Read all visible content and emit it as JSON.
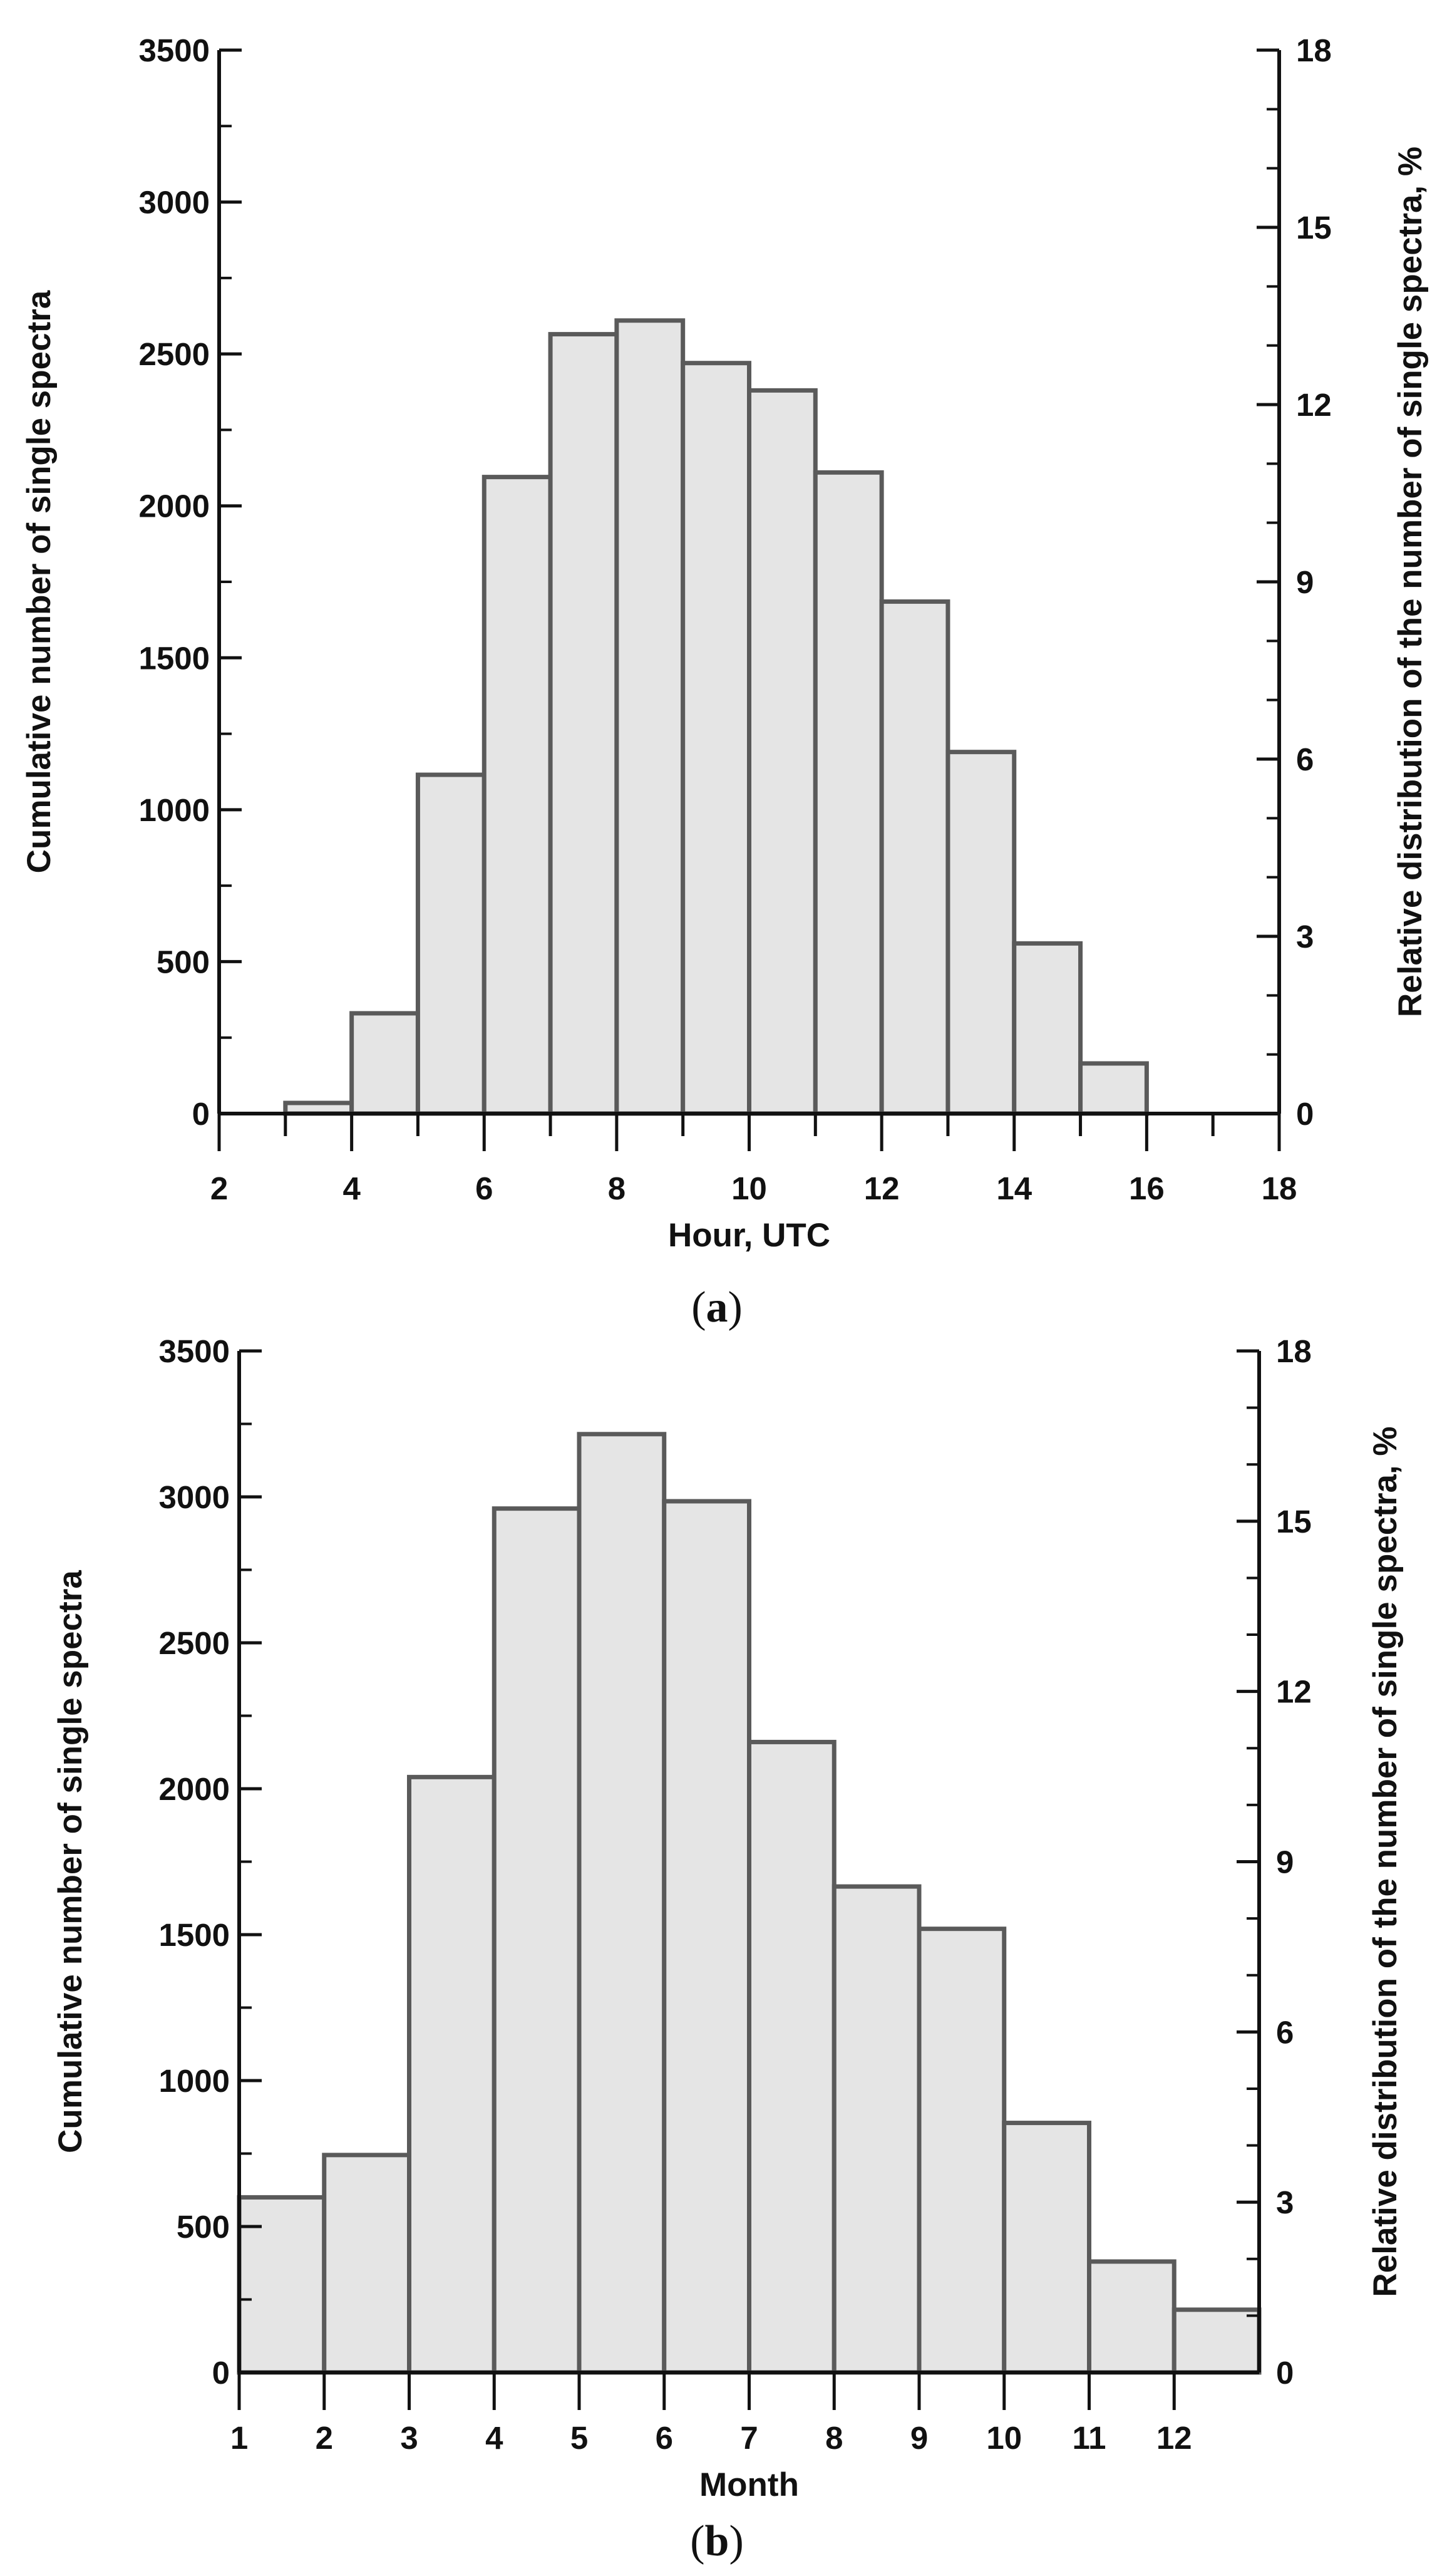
{
  "chart_data": [
    {
      "type": "bar",
      "panel_label": "a",
      "categories": [
        "3",
        "4",
        "5",
        "6",
        "7",
        "8",
        "9",
        "10",
        "11",
        "12",
        "13",
        "14",
        "15",
        "16",
        "17"
      ],
      "bins": [
        [
          3,
          4
        ],
        [
          4,
          5
        ],
        [
          5,
          6
        ],
        [
          6,
          7
        ],
        [
          7,
          8
        ],
        [
          8,
          9
        ],
        [
          9,
          10
        ],
        [
          10,
          11
        ],
        [
          11,
          12
        ],
        [
          12,
          13
        ],
        [
          13,
          14
        ],
        [
          14,
          15
        ],
        [
          15,
          16
        ],
        [
          16,
          17
        ],
        [
          17,
          18
        ]
      ],
      "values": [
        35,
        330,
        1115,
        2095,
        2565,
        2610,
        2470,
        2380,
        2110,
        1685,
        1190,
        560,
        165,
        0,
        0
      ],
      "xlabel": "Hour, UTC",
      "ylabel": "Cumulative number of single spectra",
      "y2label": "Relative distribution of the number of single spectra, %",
      "xlim": [
        2,
        18
      ],
      "ylim": [
        0,
        3500
      ],
      "y2lim": [
        0,
        18
      ],
      "x_ticks": [
        2,
        4,
        6,
        8,
        10,
        12,
        14,
        16,
        18
      ],
      "y_ticks": [
        0,
        500,
        1000,
        1500,
        2000,
        2500,
        3000,
        3500
      ],
      "y2_ticks": [
        0,
        3,
        6,
        9,
        12,
        15,
        18
      ],
      "grid": false,
      "bar_color": "#e5e5e5",
      "edge_color": "#5a5a5a"
    },
    {
      "type": "bar",
      "panel_label": "b",
      "categories": [
        "1",
        "2",
        "3",
        "4",
        "5",
        "6",
        "7",
        "8",
        "9",
        "10",
        "11",
        "12"
      ],
      "bins": [
        [
          1,
          2
        ],
        [
          2,
          3
        ],
        [
          3,
          4
        ],
        [
          4,
          5
        ],
        [
          5,
          6
        ],
        [
          6,
          7
        ],
        [
          7,
          8
        ],
        [
          8,
          9
        ],
        [
          9,
          10
        ],
        [
          10,
          11
        ],
        [
          11,
          12
        ],
        [
          12,
          13
        ]
      ],
      "values": [
        600,
        745,
        2040,
        2960,
        3215,
        2985,
        2160,
        1665,
        1520,
        855,
        380,
        215
      ],
      "xlabel": "Month",
      "ylabel": "Cumulative number of single spectra",
      "y2label": "Relative distribution of the number of single spectra, %",
      "xlim": [
        1,
        13
      ],
      "ylim": [
        0,
        3500
      ],
      "y2lim": [
        0,
        18
      ],
      "x_ticks": [
        1,
        2,
        3,
        4,
        5,
        6,
        7,
        8,
        9,
        10,
        11,
        12
      ],
      "y_ticks": [
        0,
        500,
        1000,
        1500,
        2000,
        2500,
        3000,
        3500
      ],
      "y2_ticks": [
        0,
        3,
        6,
        9,
        12,
        15,
        18
      ],
      "grid": false,
      "bar_color": "#e5e5e5",
      "edge_color": "#5a5a5a"
    }
  ]
}
